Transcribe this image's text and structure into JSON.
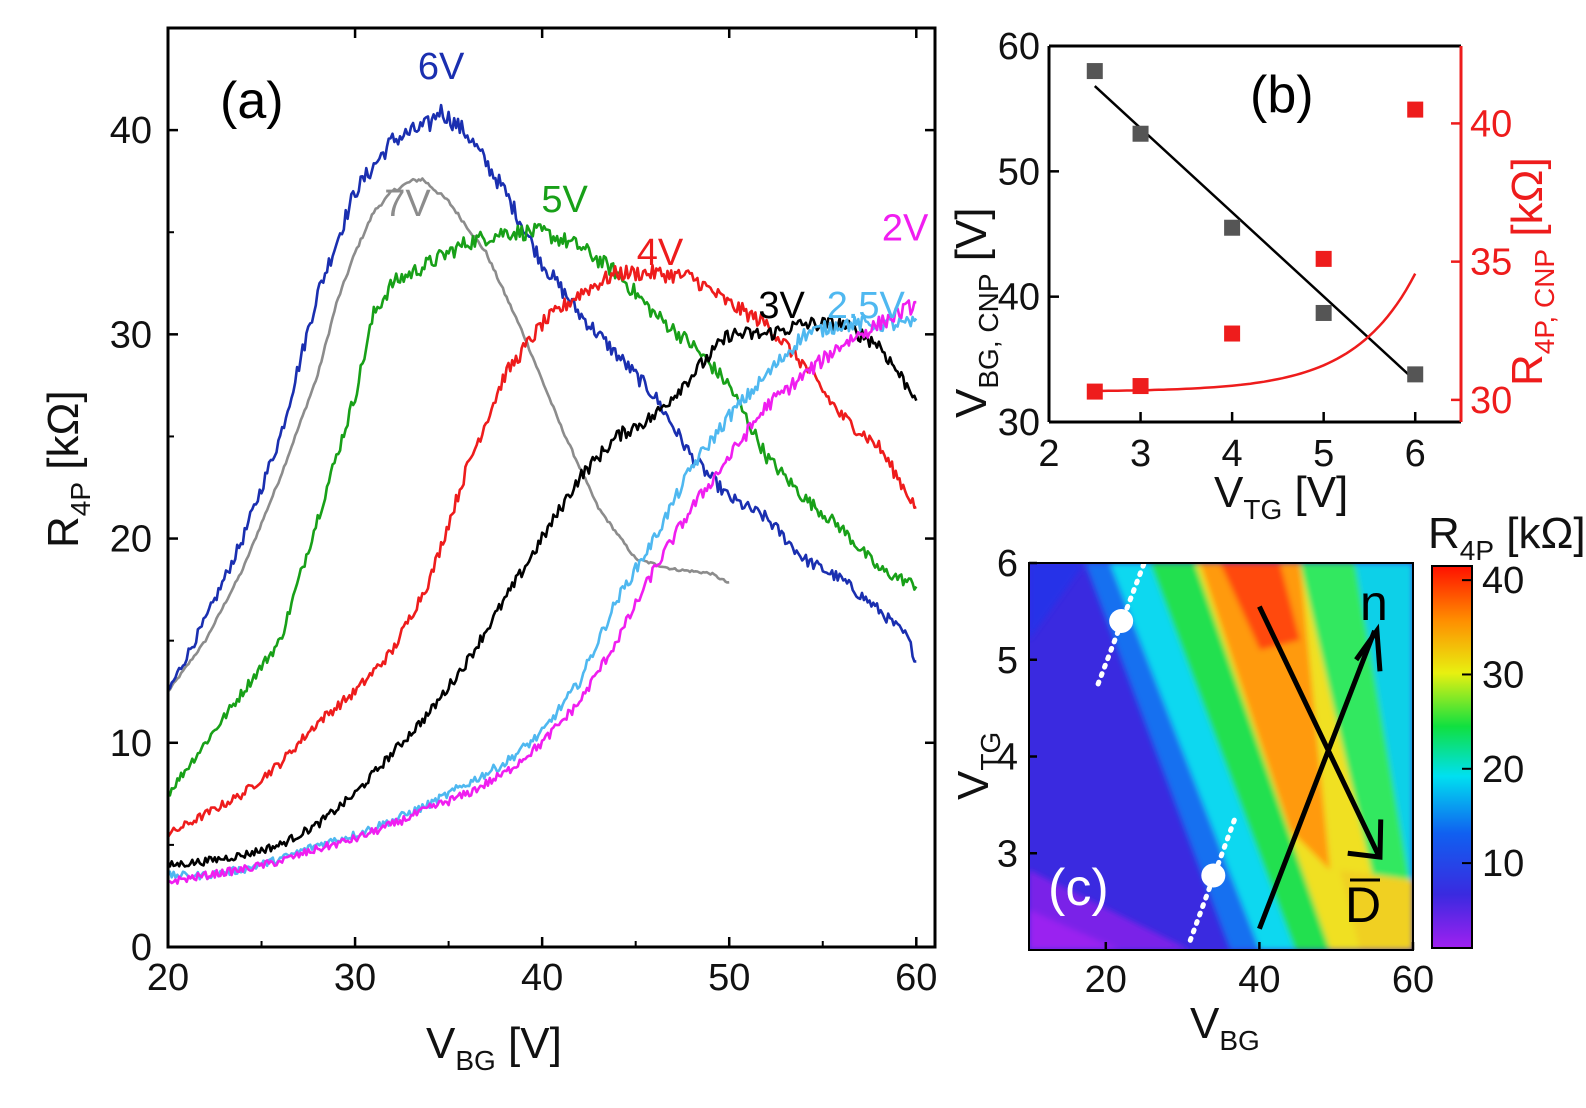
{
  "panel_labels": {
    "a": "(a)",
    "b": "(b)",
    "c": "(c)"
  },
  "chart_data": [
    {
      "panel": "a",
      "type": "line",
      "xlabel": {
        "main": "V",
        "sub": "BG",
        "unit": " [V]"
      },
      "ylabel": {
        "main": "R",
        "sub": "4P",
        "unit": " [kΩ]"
      },
      "xlim": [
        20,
        61
      ],
      "ylim": [
        0,
        45
      ],
      "xticks": [
        "20",
        "30",
        "40",
        "50",
        "60"
      ],
      "yticks": [
        "0",
        "10",
        "20",
        "30",
        "40"
      ],
      "series": [
        {
          "name": "7V",
          "color": "#8c8c8c",
          "x": [
            20,
            22,
            24,
            26,
            28,
            29,
            30,
            31,
            32,
            33,
            33.6,
            35,
            37,
            39,
            41,
            43,
            45,
            47,
            49,
            50
          ],
          "y": [
            12.5,
            15,
            18.5,
            23,
            28,
            31.5,
            34,
            36,
            37,
            37.5,
            37.6,
            36.5,
            34,
            30,
            25.5,
            21.5,
            19,
            18.5,
            18.3,
            17.8
          ]
        },
        {
          "name": "6V",
          "color": "#1a2fb0",
          "x": [
            20,
            22,
            24,
            26,
            28,
            30,
            32,
            34,
            34.5,
            36,
            38,
            40,
            42,
            44,
            46,
            48,
            50,
            52,
            54,
            56,
            58,
            59.5,
            60
          ],
          "y": [
            12.5,
            16,
            20,
            25,
            32,
            37,
            39.5,
            40.3,
            41,
            39.8,
            37,
            33.5,
            31,
            29,
            27,
            24,
            22,
            21,
            19,
            18,
            16.5,
            15.2,
            14
          ]
        },
        {
          "name": "5V",
          "color": "#18a018",
          "x": [
            20,
            22,
            24,
            26,
            28,
            30,
            31,
            32,
            34,
            36,
            38,
            40,
            42,
            44,
            46,
            48,
            50,
            52,
            54,
            56,
            58,
            60
          ],
          "y": [
            7.5,
            10,
            12.5,
            15,
            21,
            27,
            31,
            32.5,
            33.5,
            34.5,
            35,
            35,
            34.3,
            33,
            31,
            29.5,
            27.5,
            24,
            22,
            20.5,
            18.5,
            17.7
          ]
        },
        {
          "name": "4V",
          "color": "#ee1c1c",
          "x": [
            20,
            22,
            24,
            26,
            28,
            30,
            32,
            34,
            36,
            38,
            40,
            42,
            44,
            46,
            48,
            50,
            52,
            54,
            56,
            58,
            60
          ],
          "y": [
            5.5,
            6.5,
            7.5,
            9,
            11,
            12.5,
            14.5,
            18,
            23.5,
            28,
            30.5,
            32,
            33,
            33,
            32.8,
            31.5,
            30.5,
            28.5,
            26,
            24.5,
            21.5
          ]
        },
        {
          "name": "3V",
          "color": "#000000",
          "x": [
            20,
            22,
            24,
            26,
            28,
            30,
            32,
            34,
            36,
            38,
            40,
            42,
            44,
            46,
            48,
            50,
            52,
            54,
            56,
            58,
            59.5,
            60
          ],
          "y": [
            4,
            4.2,
            4.5,
            5,
            6,
            7.5,
            9.5,
            11.5,
            14,
            17,
            20,
            23,
            25,
            26,
            28,
            30,
            30,
            30.5,
            30.5,
            29.5,
            27.5,
            27
          ]
        },
        {
          "name": "2.5V",
          "color": "#4fb8f0",
          "x": [
            20,
            22,
            24,
            26,
            28,
            30,
            32,
            34,
            36,
            38,
            40,
            42,
            44,
            46,
            48,
            50,
            52,
            54,
            56,
            58,
            60
          ],
          "y": [
            3.5,
            3.5,
            3.8,
            4.3,
            5,
            5.5,
            6.2,
            7,
            8,
            9,
            10.5,
            13,
            17,
            20,
            23.5,
            26,
            28,
            30,
            30.5,
            30.5,
            30.5
          ]
        },
        {
          "name": "2V",
          "color": "#f01ef0",
          "x": [
            20,
            22,
            24,
            26,
            28,
            30,
            32,
            34,
            36,
            38,
            40,
            42,
            44,
            46,
            48,
            50,
            52,
            54,
            56,
            58,
            60
          ],
          "y": [
            3.2,
            3.5,
            3.8,
            4.2,
            4.8,
            5.3,
            6,
            6.8,
            7.5,
            8.5,
            10,
            12,
            15,
            18.5,
            21.5,
            24,
            26.5,
            28,
            29.5,
            30.5,
            31.5
          ]
        }
      ],
      "annotations": [
        {
          "text": "6V",
          "series": "6V",
          "x": 34.6,
          "y": 42.5
        },
        {
          "text": "7V",
          "series": "7V",
          "x": 32.8,
          "y": 35.8
        },
        {
          "text": "5V",
          "series": "5V",
          "x": 41.2,
          "y": 36
        },
        {
          "text": "4V",
          "series": "4V",
          "x": 46.3,
          "y": 33.4
        },
        {
          "text": "3V",
          "series": "3V",
          "x": 52.8,
          "y": 30.8
        },
        {
          "text": "2.5V",
          "series": "2.5V",
          "x": 57.3,
          "y": 30.8
        },
        {
          "text": "2V",
          "series": "2V",
          "x": 59.4,
          "y": 34.6
        }
      ]
    },
    {
      "panel": "b",
      "type": "scatter",
      "xlabel": {
        "main": "V",
        "sub": "TG",
        "unit": " [V]"
      },
      "ylabel_left": {
        "main": "V",
        "sub": "BG, CNP",
        "unit": " [V]"
      },
      "ylabel_right": {
        "main": "R",
        "sub": "4P, CNP",
        "unit": " [kΩ]"
      },
      "xlim": [
        2,
        6.5
      ],
      "ylim_left": [
        30,
        60
      ],
      "ylim_right": [
        29.2,
        42.8
      ],
      "xticks": [
        "2",
        "3",
        "4",
        "5",
        "6"
      ],
      "yticks_left": [
        "30",
        "40",
        "50",
        "60"
      ],
      "yticks_right": [
        "30",
        "35",
        "40"
      ],
      "left_color": "#000000",
      "right_color": "#ee1c1c",
      "series": [
        {
          "name": "V_BG,CNP",
          "axis": "left",
          "color": "#555555",
          "x": [
            2.5,
            3,
            4,
            5,
            6
          ],
          "y": [
            58,
            53,
            45.5,
            38.7,
            33.8
          ],
          "fit": "linear",
          "fit_y": [
            56.8,
            33.3
          ]
        },
        {
          "name": "R_4P,CNP",
          "axis": "right",
          "color": "#ee1c1c",
          "x": [
            2.5,
            3,
            4,
            5,
            6
          ],
          "y": [
            30.3,
            30.5,
            32.4,
            35.1,
            40.5
          ],
          "fit": "exponential",
          "fit_params": {
            "a": 30.3,
            "b": 0.0224,
            "k": 1.5
          }
        }
      ]
    },
    {
      "panel": "c",
      "type": "heatmap",
      "xlabel": {
        "main": "V",
        "sub": "BG"
      },
      "ylabel": {
        "main": "V",
        "sub": "TG"
      },
      "xlim": [
        10,
        60
      ],
      "ylim": [
        2,
        6
      ],
      "xticks": [
        "20",
        "40",
        "60"
      ],
      "yticks": [
        "3",
        "4",
        "5",
        "6"
      ],
      "colorbar": {
        "title": {
          "main": "R",
          "sub": "4P",
          "unit": " [kΩ]"
        },
        "range": [
          1,
          41.5
        ],
        "ticks": [
          "10",
          "20",
          "30",
          "40"
        ]
      },
      "arrow_labels": {
        "up": "n",
        "down": "D"
      },
      "dots": [
        {
          "x": 22,
          "y": 5.4
        },
        {
          "x": 34,
          "y": 2.77
        }
      ]
    }
  ]
}
